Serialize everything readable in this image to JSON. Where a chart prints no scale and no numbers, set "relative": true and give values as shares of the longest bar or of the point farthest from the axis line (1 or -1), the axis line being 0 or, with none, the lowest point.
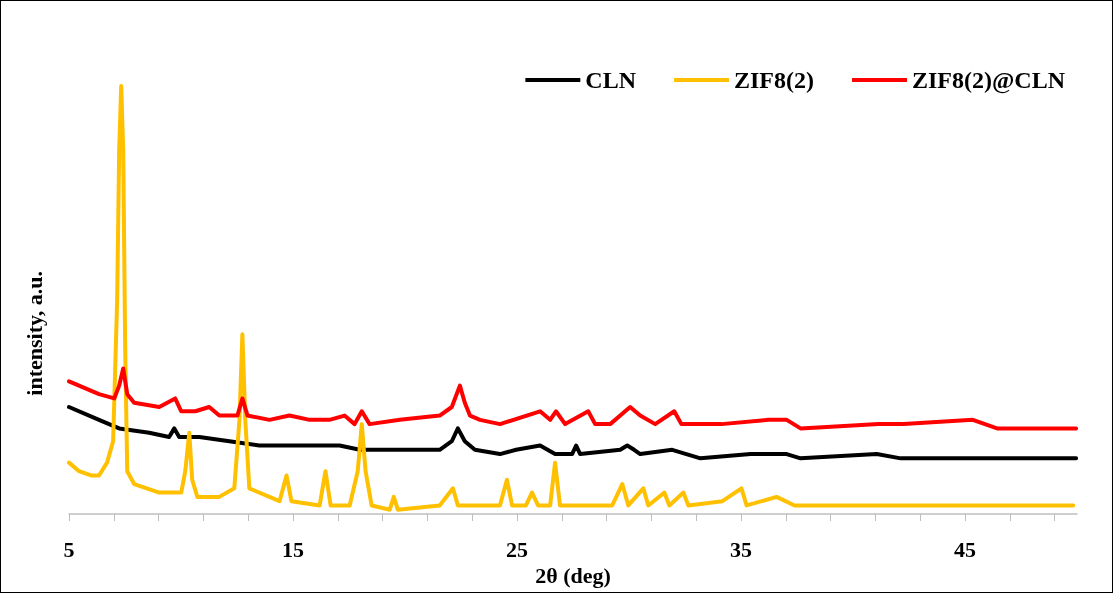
{
  "chart_data": {
    "type": "line",
    "relative": true,
    "xlabel": "2θ (deg)",
    "ylabel": "intensity, a.u.",
    "legend": "top right",
    "grid": false,
    "marker": "none",
    "line_style": "solid",
    "tick_labels": "x",
    "xlim": [
      5,
      50
    ],
    "xticks": [
      5,
      {
        "value": 7,
        "label": null
      },
      {
        "value": 9,
        "label": null
      },
      {
        "value": 11,
        "label": null
      },
      {
        "value": 13,
        "label": null
      },
      15,
      {
        "value": 17,
        "label": null
      },
      {
        "value": 19,
        "label": null
      },
      {
        "value": 21,
        "label": null
      },
      {
        "value": 23,
        "label": null
      },
      25,
      {
        "value": 27,
        "label": null
      },
      {
        "value": 29,
        "label": null
      },
      {
        "value": 31,
        "label": null
      },
      {
        "value": 33,
        "label": null
      },
      35,
      {
        "value": 37,
        "label": null
      },
      {
        "value": 39,
        "label": null
      },
      {
        "value": 41,
        "label": null
      },
      {
        "value": 43,
        "label": null
      },
      45,
      {
        "value": 47,
        "label": null
      },
      {
        "value": 49,
        "label": null
      }
    ],
    "series": [
      {
        "name": "CLN",
        "color": "#000000",
        "x": [
          5.0,
          6.34,
          7.24,
          8.58,
          9.47,
          9.7,
          9.92,
          10.82,
          12.16,
          13.5,
          15.29,
          17.08,
          17.98,
          19.77,
          21.55,
          22.09,
          22.36,
          22.67,
          23.12,
          24.24,
          24.96,
          26.03,
          26.7,
          27.46,
          27.64,
          27.82,
          29.61,
          29.92,
          30.23,
          30.5,
          31.93,
          33.19,
          35.43,
          37.04,
          37.66,
          41.06,
          42.13,
          46.61,
          49.96
        ],
        "values": [
          0.25,
          0.22,
          0.2,
          0.19,
          0.18,
          0.2,
          0.18,
          0.18,
          0.17,
          0.16,
          0.16,
          0.16,
          0.15,
          0.15,
          0.15,
          0.17,
          0.2,
          0.17,
          0.15,
          0.14,
          0.15,
          0.16,
          0.14,
          0.14,
          0.16,
          0.14,
          0.15,
          0.16,
          0.15,
          0.14,
          0.15,
          0.13,
          0.14,
          0.14,
          0.13,
          0.14,
          0.13,
          0.13,
          0.13
        ]
      },
      {
        "name": "ZIF8(2)",
        "color": "#ffc000",
        "x": [
          5.0,
          5.45,
          5.98,
          6.34,
          6.7,
          6.97,
          7.15,
          7.24,
          7.33,
          7.42,
          7.51,
          7.6,
          7.91,
          9.03,
          10.01,
          10.19,
          10.37,
          10.5,
          10.73,
          11.71,
          12.38,
          12.61,
          12.74,
          12.87,
          13.05,
          14.4,
          14.71,
          14.93,
          16.19,
          16.45,
          16.68,
          17.53,
          17.89,
          18.07,
          18.24,
          18.51,
          19.32,
          19.5,
          19.68,
          21.55,
          22.14,
          22.36,
          24.24,
          24.55,
          24.78,
          25.4,
          25.67,
          25.94,
          26.48,
          26.7,
          26.92,
          28.71,
          29.25,
          29.7,
          29.97,
          30.64,
          30.86,
          31.58,
          31.8,
          32.43,
          32.65,
          34.17,
          35.02,
          35.25,
          36.59,
          37.39,
          38.96,
          41.82,
          43.21,
          46.57,
          47.82,
          49.83
        ],
        "values": [
          0.12,
          0.1,
          0.09,
          0.09,
          0.12,
          0.17,
          0.5,
          0.85,
          1.0,
          0.85,
          0.38,
          0.1,
          0.07,
          0.05,
          0.05,
          0.1,
          0.19,
          0.08,
          0.04,
          0.04,
          0.06,
          0.22,
          0.42,
          0.22,
          0.06,
          0.03,
          0.09,
          0.03,
          0.02,
          0.1,
          0.02,
          0.02,
          0.1,
          0.21,
          0.1,
          0.02,
          0.01,
          0.04,
          0.01,
          0.02,
          0.06,
          0.02,
          0.02,
          0.08,
          0.02,
          0.02,
          0.05,
          0.02,
          0.02,
          0.12,
          0.02,
          0.02,
          0.02,
          0.07,
          0.02,
          0.06,
          0.02,
          0.05,
          0.02,
          0.05,
          0.02,
          0.03,
          0.06,
          0.02,
          0.04,
          0.02,
          0.02,
          0.02,
          0.02,
          0.02,
          0.02,
          0.02
        ]
      },
      {
        "name": "ZIF8(2)@CLN",
        "color": "#ff0000",
        "x": [
          5.0,
          6.34,
          7.02,
          7.24,
          7.42,
          7.6,
          7.91,
          9.03,
          9.74,
          10.01,
          10.64,
          11.26,
          11.71,
          12.52,
          12.74,
          12.97,
          13.95,
          14.84,
          15.74,
          16.63,
          17.3,
          17.75,
          18.07,
          18.42,
          19.77,
          21.55,
          22.09,
          22.45,
          22.67,
          22.9,
          23.35,
          24.24,
          26.03,
          26.48,
          26.74,
          27.15,
          28.18,
          28.49,
          29.16,
          30.05,
          30.5,
          31.17,
          32.02,
          32.34,
          34.13,
          36.21,
          37.04,
          37.66,
          41.15,
          42.26,
          45.35,
          46.43,
          49.96
        ],
        "values": [
          0.31,
          0.28,
          0.27,
          0.3,
          0.34,
          0.28,
          0.26,
          0.25,
          0.27,
          0.24,
          0.24,
          0.25,
          0.23,
          0.23,
          0.27,
          0.23,
          0.22,
          0.23,
          0.22,
          0.22,
          0.23,
          0.21,
          0.24,
          0.21,
          0.22,
          0.23,
          0.25,
          0.3,
          0.26,
          0.23,
          0.22,
          0.21,
          0.24,
          0.22,
          0.24,
          0.21,
          0.24,
          0.21,
          0.21,
          0.25,
          0.23,
          0.21,
          0.24,
          0.21,
          0.21,
          0.22,
          0.22,
          0.2,
          0.21,
          0.21,
          0.22,
          0.2,
          0.2
        ]
      }
    ]
  }
}
